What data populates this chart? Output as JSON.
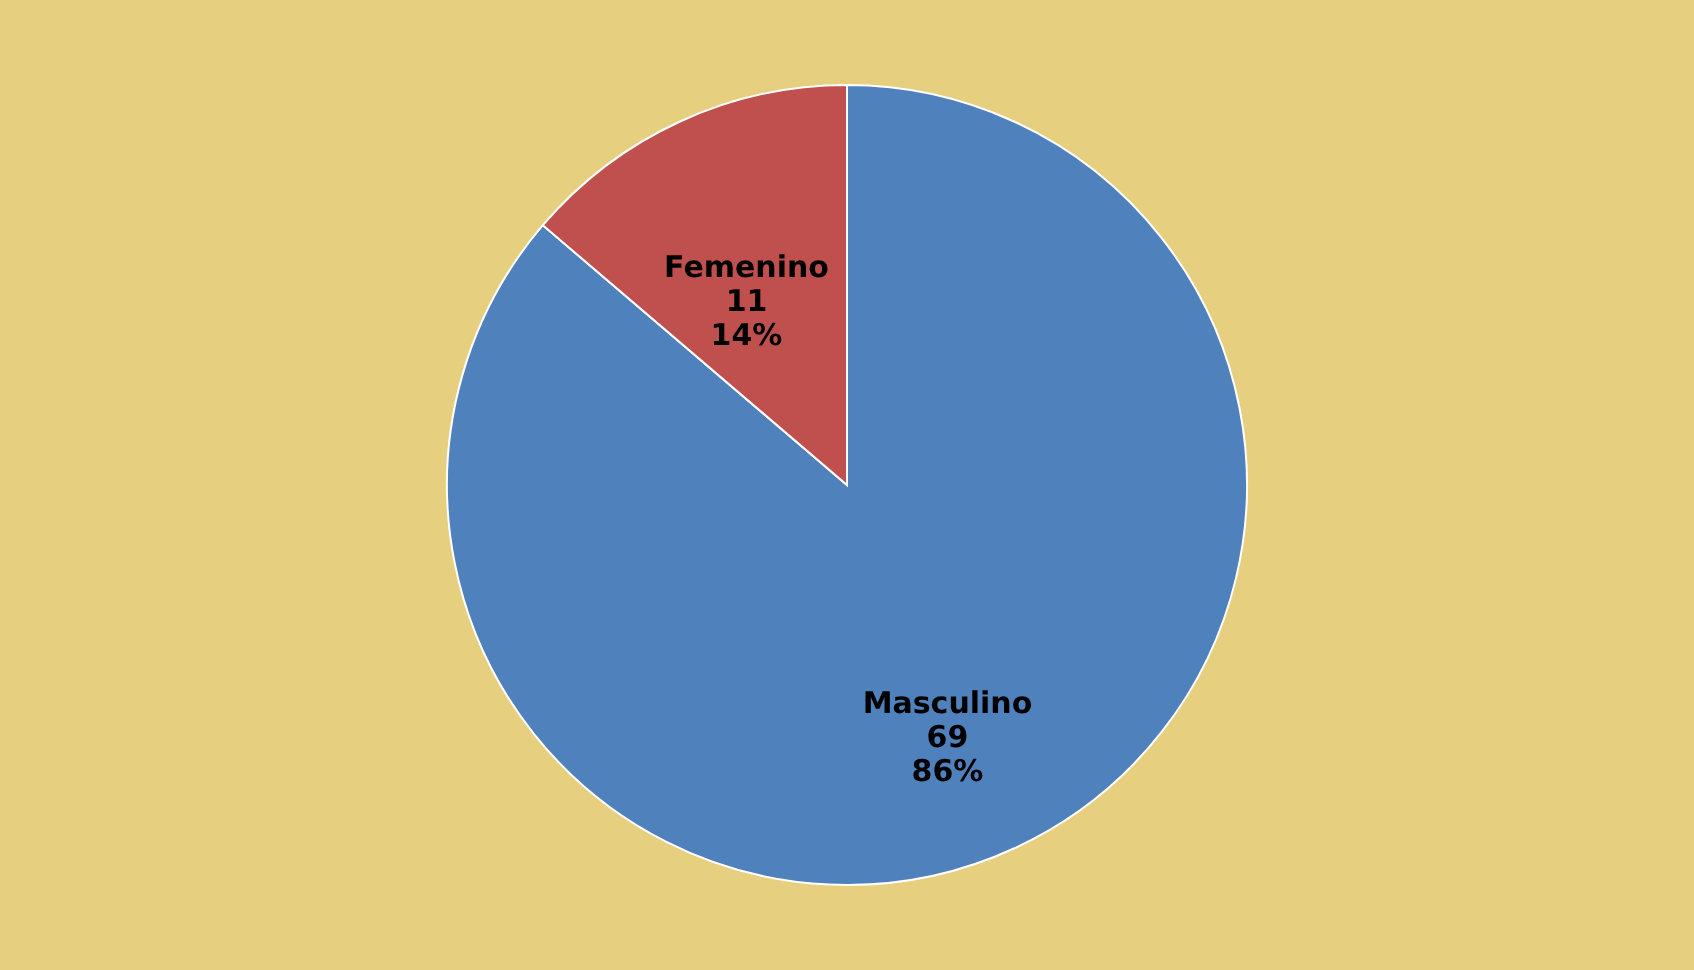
{
  "chart_data": {
    "type": "pie",
    "categories": [
      "Masculino",
      "Femenino"
    ],
    "values": [
      69,
      11
    ],
    "colors": [
      "#4f81bd",
      "#c0504d"
    ],
    "value_labels": [
      "69\n86%",
      "11\n14%"
    ],
    "legend": false
  }
}
